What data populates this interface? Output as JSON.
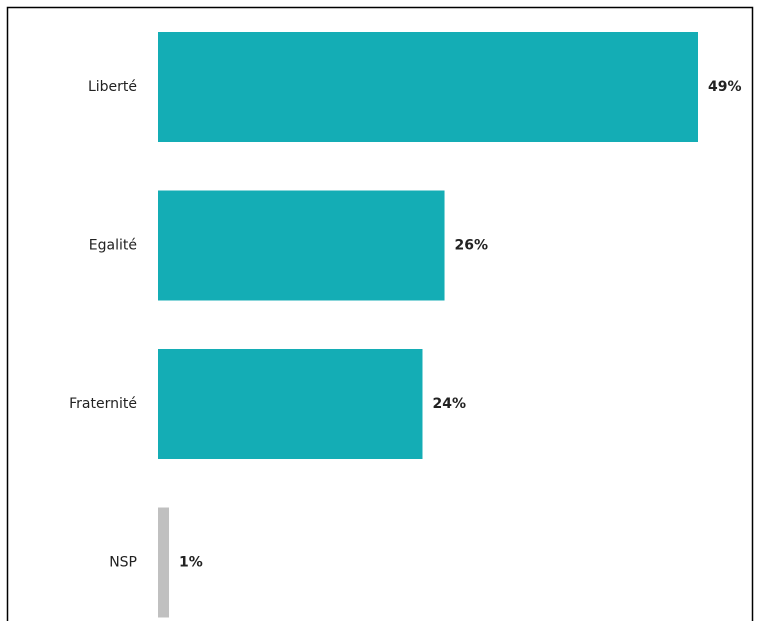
{
  "chart_data": {
    "type": "bar",
    "orientation": "horizontal",
    "categories": [
      "Liberté",
      "Egalité",
      "Fraternité",
      "NSP"
    ],
    "values": [
      49,
      26,
      24,
      1
    ],
    "value_labels": [
      "49%",
      "26%",
      "24%",
      "1%"
    ],
    "colors": [
      "#14adb5",
      "#14adb5",
      "#14adb5",
      "#c0c0c0"
    ]
  }
}
